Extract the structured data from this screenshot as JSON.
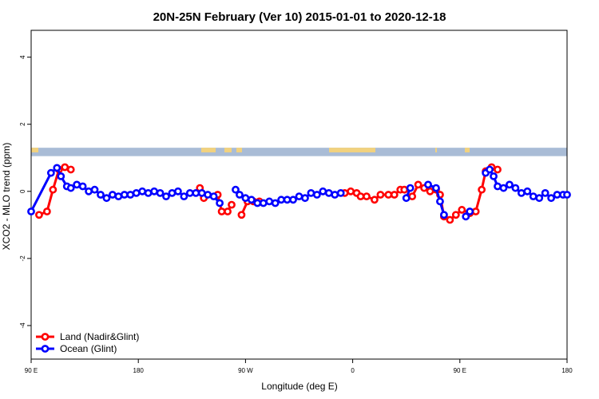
{
  "chart_data": {
    "type": "line",
    "title": "20N-25N February (Ver 10)   2015-01-01 to 2020-12-18",
    "xlabel": "Longitude (deg E)",
    "ylabel": "XCO2 - MLO trend (ppm)",
    "xlim": [
      -90,
      180
    ],
    "ylim": [
      -5,
      4.8
    ],
    "x_ticks": [
      {
        "value": -90,
        "label": "90 E"
      },
      {
        "value": -36,
        "label": "180"
      },
      {
        "value": 18,
        "label": "90 W"
      },
      {
        "value": 72,
        "label": "0"
      },
      {
        "value": 126,
        "label": "90 E"
      },
      {
        "value": 180,
        "label": "180"
      }
    ],
    "y_ticks": [
      {
        "value": -4,
        "label": "-4"
      },
      {
        "value": -2,
        "label": "-2"
      },
      {
        "value": 0,
        "label": "0"
      },
      {
        "value": 2,
        "label": "2"
      },
      {
        "value": 4,
        "label": "4"
      }
    ],
    "legend_position": "bottom-left",
    "map_strip": {
      "y_range": [
        1.05,
        1.3
      ],
      "ocean_color": "#a9bcd6",
      "land_color": "#f2d27e"
    },
    "series": [
      {
        "name": "Land (Nadir&Glint)",
        "color": "#ff0000",
        "segments": [
          [
            [
              -86,
              -0.7
            ],
            [
              -82,
              -0.6
            ],
            [
              -79,
              0.05
            ],
            [
              -76,
              0.65
            ],
            [
              -73,
              0.72
            ],
            [
              -70,
              0.65
            ]
          ],
          [
            [
              -5,
              0.1
            ],
            [
              -3,
              -0.2
            ]
          ],
          [
            [
              4,
              -0.1
            ],
            [
              6,
              -0.6
            ],
            [
              9,
              -0.6
            ],
            [
              11,
              -0.4
            ]
          ],
          [
            [
              16,
              -0.7
            ],
            [
              19,
              -0.3
            ],
            [
              22,
              -0.3
            ],
            [
              25,
              -0.3
            ]
          ],
          [
            [
              68,
              -0.05
            ],
            [
              71,
              0
            ],
            [
              74,
              -0.05
            ]
          ],
          [
            [
              76,
              -0.15
            ],
            [
              79,
              -0.15
            ],
            [
              83,
              -0.25
            ],
            [
              86,
              -0.1
            ],
            [
              90,
              -0.1
            ],
            [
              93,
              -0.1
            ],
            [
              96,
              0.05
            ],
            [
              98,
              0.05
            ]
          ],
          [
            [
              102,
              -0.15
            ],
            [
              105,
              0.2
            ],
            [
              108,
              0.1
            ],
            [
              111,
              0
            ],
            [
              114,
              0.05
            ]
          ],
          [
            [
              116,
              -0.1
            ],
            [
              118,
              -0.75
            ],
            [
              121,
              -0.85
            ],
            [
              124,
              -0.7
            ],
            [
              127,
              -0.55
            ],
            [
              131,
              -0.65
            ],
            [
              134,
              -0.6
            ],
            [
              137,
              0.05
            ],
            [
              139,
              0.6
            ],
            [
              142,
              0.72
            ],
            [
              145,
              0.65
            ]
          ]
        ]
      },
      {
        "name": "Ocean (Glint)",
        "color": "#0000ff",
        "segments": [
          [
            [
              -90,
              -0.6
            ],
            [
              -80,
              0.55
            ],
            [
              -77,
              0.7
            ],
            [
              -75,
              0.45
            ],
            [
              -72,
              0.15
            ],
            [
              -70,
              0.1
            ],
            [
              -67,
              0.2
            ],
            [
              -64,
              0.15
            ],
            [
              -61,
              0.0
            ],
            [
              -58,
              0.05
            ],
            [
              -55,
              -0.1
            ],
            [
              -52,
              -0.2
            ],
            [
              -49,
              -0.1
            ],
            [
              -46,
              -0.15
            ],
            [
              -43,
              -0.1
            ],
            [
              -40,
              -0.1
            ],
            [
              -37,
              -0.05
            ],
            [
              -34,
              0.0
            ],
            [
              -31,
              -0.05
            ],
            [
              -28,
              0.0
            ],
            [
              -25,
              -0.05
            ],
            [
              -22,
              -0.15
            ],
            [
              -19,
              -0.05
            ],
            [
              -16,
              0.0
            ],
            [
              -13,
              -0.15
            ],
            [
              -10,
              -0.05
            ],
            [
              -7,
              -0.05
            ],
            [
              -4,
              -0.05
            ],
            [
              -1,
              -0.1
            ],
            [
              2,
              -0.15
            ],
            [
              5,
              -0.35
            ]
          ],
          [
            [
              13,
              0.05
            ],
            [
              15,
              -0.1
            ],
            [
              18,
              -0.2
            ],
            [
              21,
              -0.25
            ],
            [
              24,
              -0.35
            ],
            [
              27,
              -0.35
            ],
            [
              30,
              -0.3
            ],
            [
              33,
              -0.35
            ],
            [
              36,
              -0.25
            ],
            [
              39,
              -0.25
            ],
            [
              42,
              -0.25
            ],
            [
              45,
              -0.15
            ],
            [
              48,
              -0.2
            ],
            [
              51,
              -0.05
            ],
            [
              54,
              -0.1
            ],
            [
              57,
              0.0
            ],
            [
              60,
              -0.05
            ],
            [
              63,
              -0.1
            ],
            [
              66,
              -0.05
            ]
          ],
          [
            [
              99,
              -0.2
            ],
            [
              101,
              0.1
            ]
          ],
          [
            [
              110,
              0.2
            ],
            [
              114,
              0.1
            ],
            [
              116,
              -0.3
            ],
            [
              118,
              -0.7
            ]
          ],
          [
            [
              129,
              -0.75
            ],
            [
              131,
              -0.6
            ]
          ],
          [
            [
              139,
              0.55
            ],
            [
              141,
              0.65
            ],
            [
              143,
              0.45
            ],
            [
              145,
              0.15
            ],
            [
              148,
              0.1
            ],
            [
              151,
              0.2
            ],
            [
              154,
              0.1
            ],
            [
              157,
              -0.05
            ],
            [
              160,
              0.0
            ],
            [
              163,
              -0.15
            ],
            [
              166,
              -0.2
            ],
            [
              169,
              -0.05
            ],
            [
              172,
              -0.2
            ],
            [
              175,
              -0.1
            ],
            [
              178,
              -0.1
            ],
            [
              180,
              -0.1
            ]
          ]
        ]
      }
    ]
  }
}
